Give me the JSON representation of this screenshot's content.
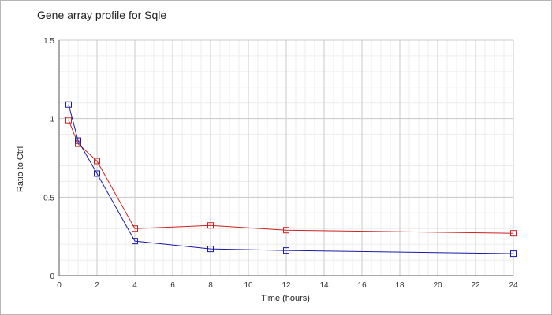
{
  "chart_data": {
    "type": "line",
    "title": "Gene array profile for Sqle",
    "xlabel": "Time (hours)",
    "ylabel": "Ratio to Ctrl",
    "xlim": [
      0,
      24
    ],
    "ylim": [
      0,
      1.5
    ],
    "xticks": [
      0,
      2,
      4,
      6,
      8,
      10,
      12,
      14,
      16,
      18,
      20,
      22,
      24
    ],
    "yticks": [
      0,
      0.5,
      1,
      1.5
    ],
    "ytick_labels": [
      "0",
      "0.5",
      "1",
      "1.5"
    ],
    "grid": true,
    "marker": "square",
    "series": [
      {
        "color": "#cc2222",
        "x": [
          0.5,
          1,
          2,
          4,
          8,
          12,
          24
        ],
        "y": [
          0.99,
          0.84,
          0.73,
          0.3,
          0.32,
          0.29,
          0.27
        ]
      },
      {
        "color": "#1a1aaa",
        "x": [
          0.5,
          1,
          2,
          4,
          8,
          12,
          24
        ],
        "y": [
          1.09,
          0.86,
          0.65,
          0.22,
          0.17,
          0.16,
          0.14
        ]
      }
    ]
  }
}
